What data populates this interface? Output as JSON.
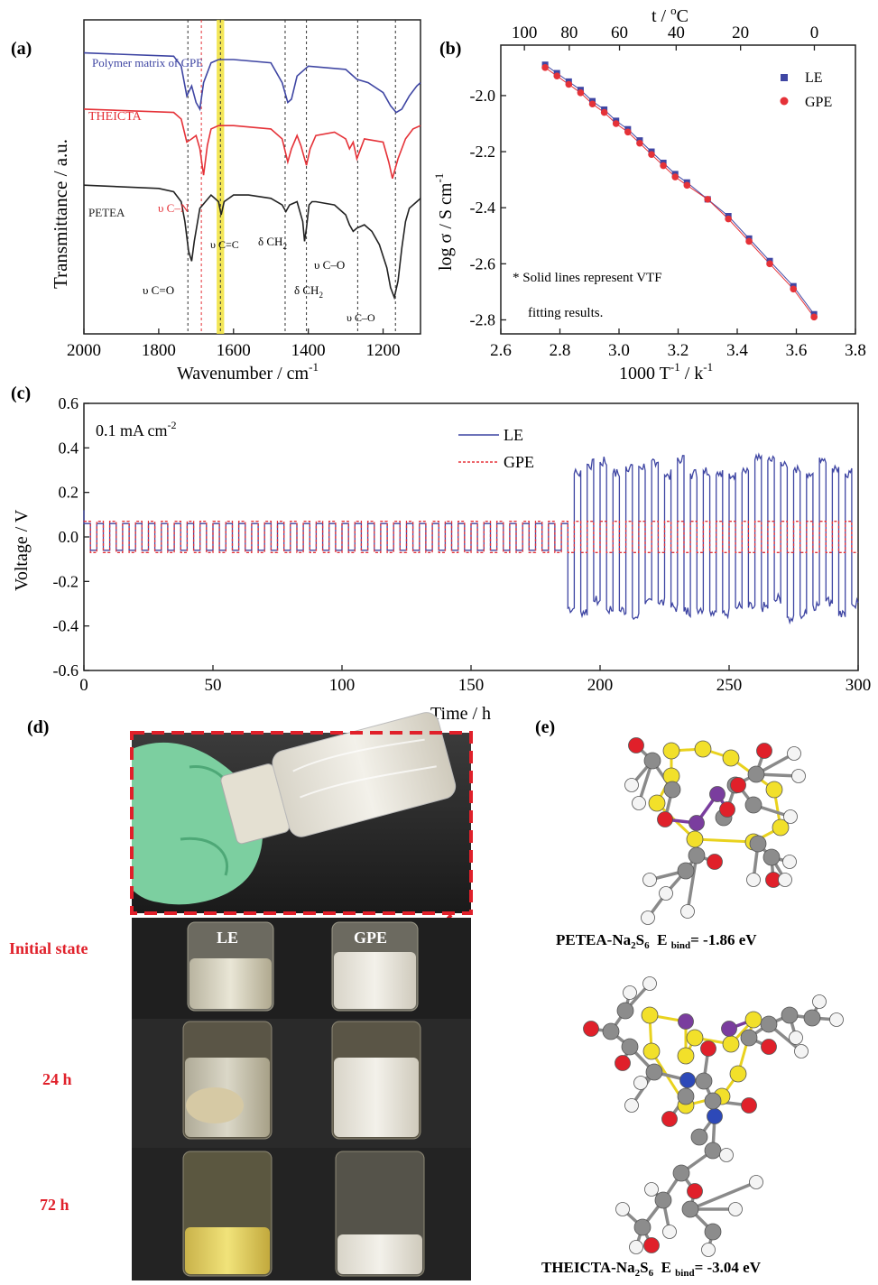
{
  "panels": {
    "a": {
      "tag": "(a)"
    },
    "b": {
      "tag": "(b)"
    },
    "c": {
      "tag": "(c)"
    },
    "d": {
      "tag": "(d)"
    },
    "e": {
      "tag": "(e)"
    }
  },
  "colors": {
    "blue": "#3f46a3",
    "red": "#e53238",
    "black": "#222222",
    "highlight": "#f1e23a",
    "photo_label": "#e0202a"
  },
  "chart_data": [
    {
      "id": "a",
      "type": "line",
      "xlabel": "Wavenumber / cm",
      "xlabel_sup": "-1",
      "ylabel": "Transmittance / a.u.",
      "xlim": [
        2000,
        1100
      ],
      "xticks": [
        "2000",
        "1800",
        "1600",
        "1400",
        "1200"
      ],
      "series": [
        {
          "name": "Polymer matrix of GPE",
          "color": "#3f46a3",
          "x": [
            2000,
            1760,
            1740,
            1725,
            1712,
            1700,
            1690,
            1680,
            1660,
            1640,
            1600,
            1500,
            1470,
            1455,
            1445,
            1430,
            1400,
            1300,
            1270,
            1240,
            1200,
            1180,
            1165,
            1150,
            1130,
            1110,
            1100
          ],
          "y": [
            8.5,
            8.4,
            8.1,
            7.2,
            7.5,
            7.0,
            6.8,
            7.6,
            8.2,
            8.3,
            8.3,
            8.2,
            7.6,
            7.0,
            7.1,
            7.8,
            8.1,
            8.0,
            7.7,
            7.6,
            7.3,
            6.9,
            6.7,
            6.8,
            7.2,
            7.5,
            7.6
          ]
        },
        {
          "name": "THEICTA",
          "color": "#e53238",
          "x": [
            2000,
            1760,
            1740,
            1725,
            1712,
            1700,
            1690,
            1680,
            1670,
            1660,
            1640,
            1600,
            1500,
            1470,
            1455,
            1445,
            1430,
            1420,
            1405,
            1395,
            1380,
            1330,
            1300,
            1290,
            1280,
            1270,
            1250,
            1200,
            1185,
            1175,
            1160,
            1140,
            1120,
            1100
          ],
          "y": [
            6.8,
            6.7,
            6.5,
            5.8,
            5.9,
            6.0,
            5.6,
            4.8,
            5.7,
            6.2,
            6.3,
            6.3,
            6.2,
            5.9,
            5.2,
            5.6,
            6.0,
            5.7,
            5.1,
            5.6,
            6.0,
            6.1,
            5.9,
            5.6,
            5.8,
            5.3,
            5.9,
            5.8,
            5.2,
            4.7,
            5.3,
            5.9,
            6.2,
            6.3
          ]
        },
        {
          "name": "PETEA",
          "color": "#222222",
          "x": [
            2000,
            1800,
            1760,
            1740,
            1730,
            1720,
            1712,
            1705,
            1690,
            1660,
            1640,
            1633,
            1625,
            1600,
            1560,
            1500,
            1470,
            1460,
            1450,
            1430,
            1415,
            1410,
            1405,
            1398,
            1390,
            1380,
            1330,
            1300,
            1290,
            1280,
            1270,
            1250,
            1230,
            1210,
            1190,
            1180,
            1170,
            1160,
            1150,
            1140,
            1130,
            1110,
            1100
          ],
          "y": [
            4.5,
            4.4,
            4.3,
            4.0,
            3.4,
            2.5,
            2.2,
            2.8,
            3.8,
            4.2,
            4.0,
            3.6,
            4.0,
            4.2,
            4.2,
            4.1,
            3.9,
            3.7,
            3.9,
            4.0,
            3.4,
            2.8,
            3.2,
            3.9,
            4.0,
            4.0,
            3.9,
            3.6,
            3.3,
            3.1,
            3.2,
            3.3,
            3.1,
            2.7,
            2.0,
            1.4,
            1.1,
            1.6,
            2.6,
            3.4,
            3.8,
            4.0,
            4.1
          ]
        }
      ],
      "series_labels": [
        "Polymer matrix of GPE",
        "THEICTA",
        "PETEA"
      ],
      "annotations": [
        "υ C=O",
        "υ C–N",
        "υ C=C",
        "δ CH",
        "δ CH",
        "υ C–O",
        "υ C–O"
      ],
      "annotation_subs": [
        "2",
        "2"
      ],
      "guide_lines_x": [
        1722,
        1686,
        1635,
        1462,
        1405,
        1268,
        1167
      ],
      "highlight_x": [
        1625,
        1645
      ]
    },
    {
      "id": "b",
      "type": "scatter",
      "xlabel": "1000 T",
      "xlabel_sup1": "-1",
      "xlabel_mid": " / k",
      "xlabel_sup2": "-1",
      "ylabel": "log σ / S cm",
      "ylabel_sup": "-1",
      "top_label": "t / ",
      "top_label_sup": "o",
      "top_label_unit": "C",
      "xlim": [
        2.6,
        3.8
      ],
      "ylim": [
        -2.85,
        -1.82
      ],
      "xticks": [
        "2.6",
        "2.8",
        "3.0",
        "3.2",
        "3.4",
        "3.6",
        "3.8"
      ],
      "yticks": [
        "-2.0",
        "-2.2",
        "-2.4",
        "-2.6",
        "-2.8"
      ],
      "top_ticks": [
        "100",
        "80",
        "60",
        "40",
        "20",
        "0"
      ],
      "top_ticks_c": [
        100,
        80,
        60,
        40,
        20,
        0
      ],
      "series": [
        {
          "name": "LE",
          "color": "#3f46a3",
          "marker": "square",
          "x": [
            2.75,
            2.79,
            2.83,
            2.87,
            2.91,
            2.95,
            2.99,
            3.03,
            3.07,
            3.11,
            3.15,
            3.19,
            3.23,
            3.3,
            3.37,
            3.44,
            3.51,
            3.59,
            3.66
          ],
          "y": [
            -1.89,
            -1.92,
            -1.95,
            -1.98,
            -2.02,
            -2.05,
            -2.09,
            -2.12,
            -2.16,
            -2.2,
            -2.24,
            -2.28,
            -2.31,
            -2.37,
            -2.43,
            -2.51,
            -2.59,
            -2.68,
            -2.78
          ]
        },
        {
          "name": "GPE",
          "color": "#e53238",
          "marker": "circle",
          "x": [
            2.75,
            2.79,
            2.83,
            2.87,
            2.91,
            2.95,
            2.99,
            3.03,
            3.07,
            3.11,
            3.15,
            3.19,
            3.23,
            3.3,
            3.37,
            3.44,
            3.51,
            3.59,
            3.66
          ],
          "y": [
            -1.9,
            -1.93,
            -1.96,
            -1.99,
            -2.03,
            -2.06,
            -2.1,
            -2.13,
            -2.17,
            -2.21,
            -2.25,
            -2.29,
            -2.32,
            -2.37,
            -2.44,
            -2.52,
            -2.6,
            -2.69,
            -2.79
          ]
        }
      ],
      "legend": [
        "LE",
        "GPE"
      ],
      "legend_position": "top-right",
      "note_line1": "* Solid lines represent VTF",
      "note_line2": "fitting results."
    },
    {
      "id": "c",
      "type": "line",
      "xlabel": "Time / h",
      "ylabel": "Voltage / V",
      "xlim": [
        0,
        300
      ],
      "ylim": [
        -0.6,
        0.6
      ],
      "xticks": [
        "0",
        "50",
        "100",
        "150",
        "200",
        "250",
        "300"
      ],
      "yticks": [
        "0.6",
        "0.4",
        "0.2",
        "0.0",
        "-0.2",
        "-0.4",
        "-0.6"
      ],
      "annotation": "0.1 mA cm",
      "annotation_sup": "-2",
      "legend": [
        "LE",
        "GPE"
      ],
      "legend_position": "top-right",
      "series": [
        {
          "name": "LE",
          "color": "#3f46a3",
          "style": "solid",
          "period_h": 5,
          "amplitude_before": 0.06,
          "amplitude_after": 0.35,
          "failure_time_h": 186
        },
        {
          "name": "GPE",
          "color": "#e53238",
          "style": "dashed",
          "period_h": 5,
          "amplitude": 0.07
        }
      ]
    }
  ],
  "photo": {
    "label_le": "LE",
    "label_gpe": "GPE",
    "rows": [
      "Initial state",
      "24 h",
      "72 h"
    ]
  },
  "molecules": {
    "petea_caption": "PETEA-Na",
    "petea_caption_sub1": "2",
    "petea_caption_mid": "S",
    "petea_caption_sub2": "6",
    "petea_caption_e": "  E ",
    "petea_caption_bind": "bind",
    "petea_caption_val": "= -1.86 eV",
    "theicta_caption": "THEICTA-Na",
    "theicta_caption_sub1": "2",
    "theicta_caption_mid": "S",
    "theicta_caption_sub2": "6",
    "theicta_caption_e": "  E ",
    "theicta_caption_bind": "bind",
    "theicta_caption_val": "= -3.04 eV"
  }
}
